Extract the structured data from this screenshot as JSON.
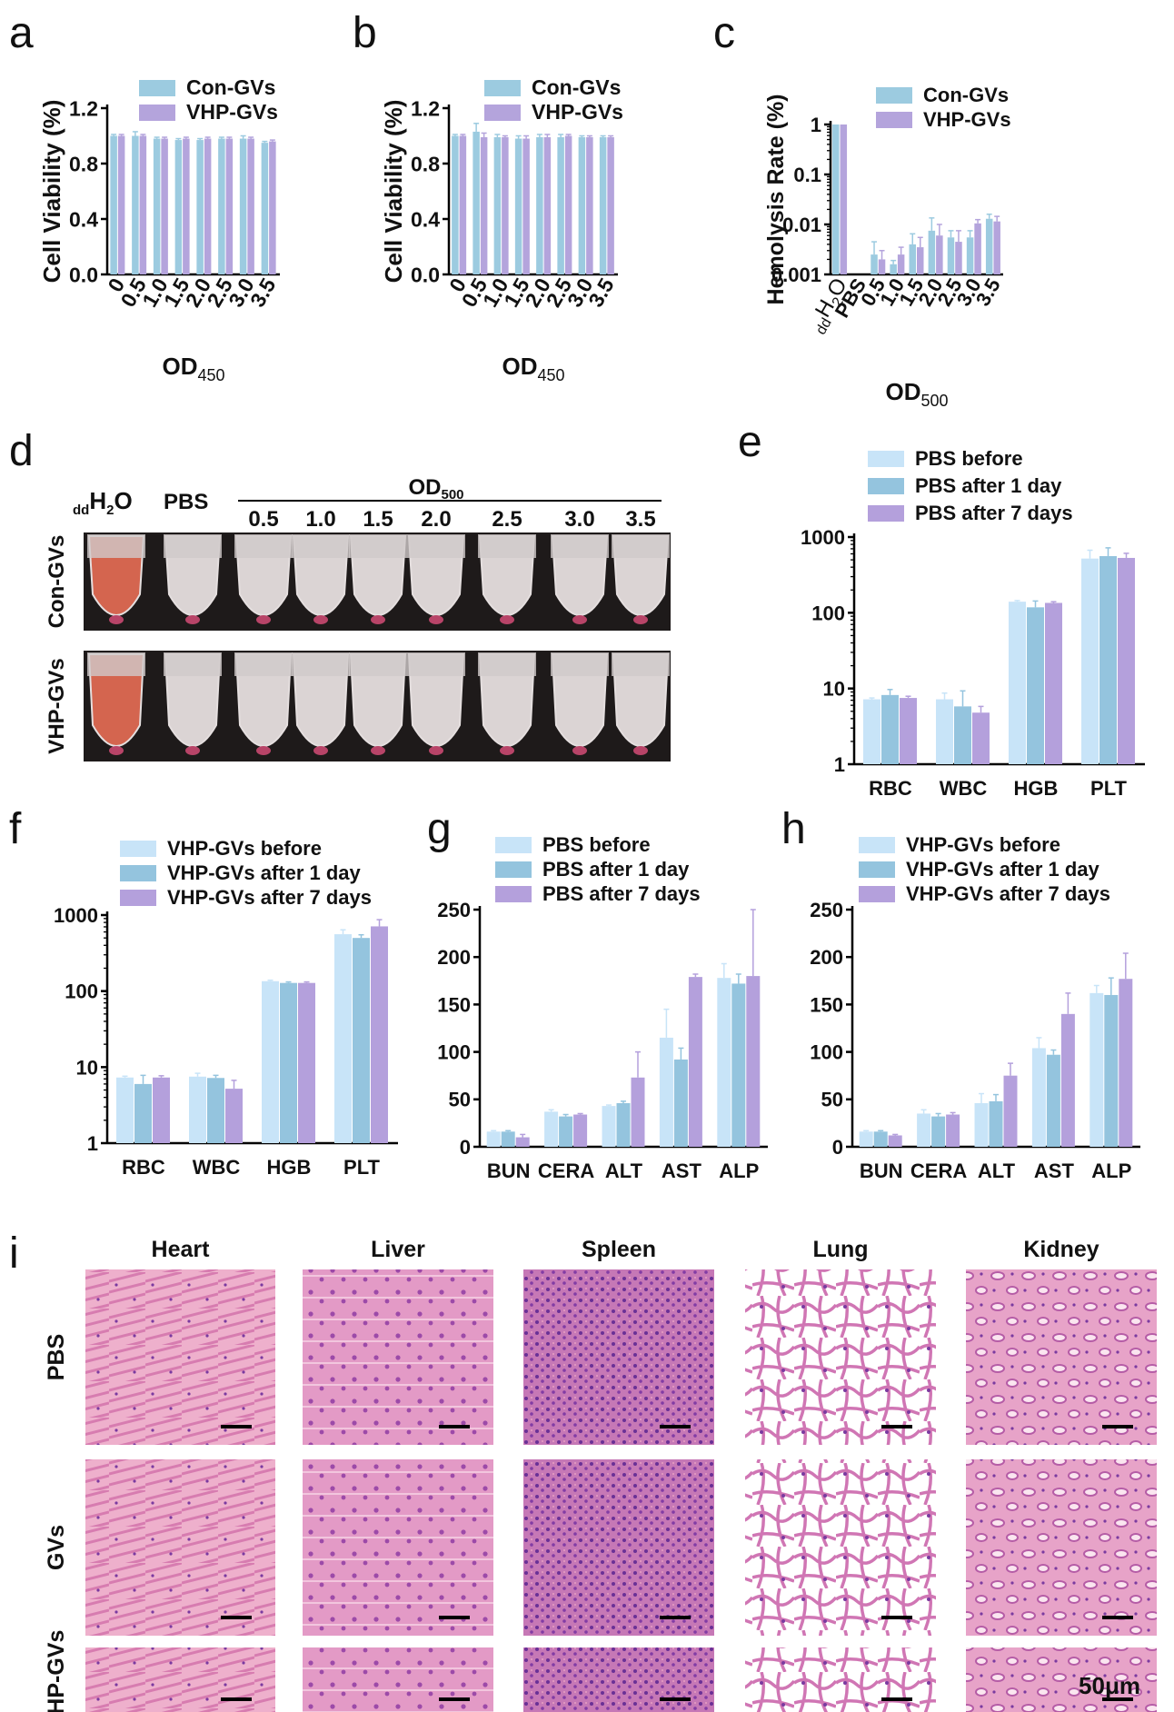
{
  "colors": {
    "con": "#9ccbe0",
    "vhp": "#b4a4dc",
    "light": "#c8e4f8",
    "mid": "#94c4de",
    "purple": "#b4a0dc",
    "err_con": "#7ab8d8",
    "err_vhp": "#9c86d0",
    "axis": "#000000",
    "tissue_base": "#e8a6c6",
    "tissue_dark": "#c45ea4",
    "tissue_nuc": "#6e3a9a",
    "tube_bg": "#1e1a1a",
    "tube_red": "#de6a52",
    "tube_clear": "#e6dede",
    "pellet": "#b84468"
  },
  "chart_data": [
    {
      "id": "a",
      "panel_label": "a",
      "type": "bar",
      "scale": "linear",
      "categories": [
        "0",
        "0.5",
        "1.0",
        "1.5",
        "2.0",
        "2.5",
        "3.0",
        "3.5"
      ],
      "ylabel": "Cell Viability (%)",
      "xlabel_main": "OD",
      "xlabel_sub": "450",
      "ylim": [
        0,
        1.2
      ],
      "yticks": [
        "0.0",
        "0.4",
        "0.8",
        "1.2"
      ],
      "legend": [
        "Con-GVs",
        "VHP-GVs"
      ],
      "series": [
        {
          "name": "Con-GVs",
          "color": "con",
          "values": [
            1.0,
            1.0,
            0.98,
            0.97,
            0.97,
            0.98,
            0.98,
            0.95
          ],
          "err": [
            0.01,
            0.03,
            0.01,
            0.01,
            0.01,
            0.01,
            0.02,
            0.01
          ]
        },
        {
          "name": "VHP-GVs",
          "color": "vhp",
          "values": [
            1.0,
            1.0,
            0.98,
            0.98,
            0.98,
            0.98,
            0.98,
            0.96
          ],
          "err": [
            0.01,
            0.01,
            0.01,
            0.01,
            0.01,
            0.01,
            0.01,
            0.01
          ]
        }
      ]
    },
    {
      "id": "b",
      "panel_label": "b",
      "type": "bar",
      "scale": "linear",
      "categories": [
        "0",
        "0.5",
        "1.0",
        "1.5",
        "2.0",
        "2.5",
        "3.0",
        "3.5"
      ],
      "ylabel": "Cell Viability (%)",
      "xlabel_main": "OD",
      "xlabel_sub": "450",
      "ylim": [
        0,
        1.2
      ],
      "yticks": [
        "0.0",
        "0.4",
        "0.8",
        "1.2"
      ],
      "legend": [
        "Con-GVs",
        "VHP-GVs"
      ],
      "series": [
        {
          "name": "Con-GVs",
          "color": "con",
          "values": [
            1.0,
            1.03,
            0.99,
            0.98,
            0.99,
            0.99,
            0.99,
            0.99
          ],
          "err": [
            0.01,
            0.06,
            0.02,
            0.02,
            0.02,
            0.02,
            0.01,
            0.01
          ]
        },
        {
          "name": "VHP-GVs",
          "color": "vhp",
          "values": [
            1.0,
            0.99,
            0.99,
            0.98,
            0.99,
            1.0,
            0.99,
            0.99
          ],
          "err": [
            0.01,
            0.03,
            0.01,
            0.02,
            0.02,
            0.01,
            0.01,
            0.01
          ]
        }
      ]
    },
    {
      "id": "c",
      "panel_label": "c",
      "type": "bar",
      "scale": "log",
      "categories": [
        "ddH2O",
        "PBS",
        "0.5",
        "1.0",
        "1.5",
        "2.0",
        "2.5",
        "3.0",
        "3.5"
      ],
      "ylabel": "Hemolysis Rate (%)",
      "xlabel_main": "OD",
      "xlabel_sub": "500",
      "ylim": [
        0.001,
        1
      ],
      "yticks": [
        "0.001",
        "0.01",
        "0.1",
        "1"
      ],
      "legend": [
        "Con-GVs",
        "VHP-GVs"
      ],
      "series": [
        {
          "name": "Con-GVs",
          "color": "con",
          "values": [
            1,
            null,
            0.0025,
            0.0016,
            0.004,
            0.0075,
            0.0055,
            0.0055,
            0.013
          ],
          "err": [
            0,
            0,
            0.002,
            0.0003,
            0.0025,
            0.006,
            0.002,
            0.002,
            0.003
          ]
        },
        {
          "name": "VHP-GVs",
          "color": "vhp",
          "values": [
            1,
            null,
            0.002,
            0.0025,
            0.0035,
            0.006,
            0.0045,
            0.0105,
            0.0115
          ],
          "err": [
            0,
            0,
            0.001,
            0.001,
            0.002,
            0.004,
            0.003,
            0.002,
            0.003
          ]
        }
      ]
    },
    {
      "id": "e",
      "panel_label": "e",
      "type": "bar",
      "scale": "log",
      "categories": [
        "RBC",
        "WBC",
        "HGB",
        "PLT"
      ],
      "ylim": [
        1,
        1000
      ],
      "yticks": [
        "1",
        "10",
        "100",
        "1000"
      ],
      "legend": [
        "PBS before",
        "PBS after 1 day",
        "PBS after 7 days"
      ],
      "series": [
        {
          "name": "PBS before",
          "color": "light",
          "values": [
            7.2,
            7.2,
            140,
            520
          ],
          "err": [
            0.3,
            1.5,
            5,
            150
          ]
        },
        {
          "name": "PBS after 1 day",
          "color": "mid",
          "values": [
            8.2,
            5.8,
            118,
            560
          ],
          "err": [
            1.5,
            3.5,
            25,
            160
          ]
        },
        {
          "name": "PBS after 7 days",
          "color": "purple",
          "values": [
            7.5,
            4.8,
            135,
            530
          ],
          "err": [
            0.4,
            1.0,
            5,
            80
          ]
        }
      ]
    },
    {
      "id": "f",
      "panel_label": "f",
      "type": "bar",
      "scale": "log",
      "categories": [
        "RBC",
        "WBC",
        "HGB",
        "PLT"
      ],
      "ylim": [
        1,
        1000
      ],
      "yticks": [
        "1",
        "10",
        "100",
        "1000"
      ],
      "legend": [
        "VHP-GVs before",
        "VHP-GVs after 1 day",
        "VHP-GVs after 7 days"
      ],
      "series": [
        {
          "name": "VHP-GVs before",
          "color": "light",
          "values": [
            7.3,
            7.5,
            135,
            560
          ],
          "err": [
            0.3,
            0.8,
            4,
            80
          ]
        },
        {
          "name": "VHP-GVs after 1 day",
          "color": "mid",
          "values": [
            6.0,
            7.2,
            128,
            500
          ],
          "err": [
            1.8,
            0.6,
            4,
            50
          ]
        },
        {
          "name": "VHP-GVs after 7 days",
          "color": "purple",
          "values": [
            7.3,
            5.2,
            128,
            710
          ],
          "err": [
            0.4,
            1.5,
            4,
            160
          ]
        }
      ]
    },
    {
      "id": "g",
      "panel_label": "g",
      "type": "bar",
      "scale": "linear",
      "categories": [
        "BUN",
        "CERA",
        "ALT",
        "AST",
        "ALP"
      ],
      "ylim": [
        0,
        250
      ],
      "yticks": [
        "0",
        "50",
        "100",
        "150",
        "200",
        "250"
      ],
      "legend": [
        "PBS before",
        "PBS after 1 day",
        "PBS after 7 days"
      ],
      "series": [
        {
          "name": "PBS before",
          "color": "light",
          "values": [
            16,
            37,
            43,
            115,
            178
          ],
          "err": [
            1,
            2,
            1,
            30,
            15
          ]
        },
        {
          "name": "PBS after 1 day",
          "color": "mid",
          "values": [
            16,
            32,
            46,
            92,
            172
          ],
          "err": [
            1,
            2,
            2,
            12,
            10
          ]
        },
        {
          "name": "PBS after 7 days",
          "color": "purple",
          "values": [
            10,
            34,
            73,
            179,
            180
          ],
          "err": [
            3,
            1,
            27,
            3,
            70
          ]
        }
      ]
    },
    {
      "id": "h",
      "panel_label": "h",
      "type": "bar",
      "scale": "linear",
      "categories": [
        "BUN",
        "CERA",
        "ALT",
        "AST",
        "ALP"
      ],
      "ylim": [
        0,
        250
      ],
      "yticks": [
        "0",
        "50",
        "100",
        "150",
        "200",
        "250"
      ],
      "legend": [
        "VHP-GVs before",
        "VHP-GVs after 1 day",
        "VHP-GVs after 7 days"
      ],
      "series": [
        {
          "name": "VHP-GVs before",
          "color": "light",
          "values": [
            16,
            35,
            46,
            104,
            162
          ],
          "err": [
            1,
            4,
            10,
            11,
            8
          ]
        },
        {
          "name": "VHP-GVs after 1 day",
          "color": "mid",
          "values": [
            16,
            32,
            48,
            97,
            160
          ],
          "err": [
            1,
            3,
            7,
            5,
            18
          ]
        },
        {
          "name": "VHP-GVs after 7 days",
          "color": "purple",
          "values": [
            12,
            34,
            75,
            140,
            177
          ],
          "err": [
            1,
            2,
            13,
            22,
            27
          ]
        }
      ]
    }
  ],
  "panel_d": {
    "panel_label": "d",
    "ddh2o_sub": "dd",
    "ddh2o_main": "H",
    "ddh2o_h2": "2",
    "ddh2o_o": "O",
    "pbs": "PBS",
    "od_main": "OD",
    "od_sub": "500",
    "concentrations": [
      "0.5",
      "1.0",
      "1.5",
      "2.0",
      "2.5",
      "3.0",
      "3.5"
    ],
    "row_labels": [
      "Con-GVs",
      "VHP-GVs"
    ],
    "tube_count": 9
  },
  "panel_c_xlabel_first": {
    "sub": "dd",
    "main": "H",
    "h2": "2",
    "o": "O"
  },
  "panel_i": {
    "panel_label": "i",
    "organs": [
      "Heart",
      "Liver",
      "Spleen",
      "Lung",
      "Kidney"
    ],
    "groups": [
      "PBS",
      "GVs",
      "VHP-GVs"
    ],
    "scale_bar": "50μm"
  }
}
